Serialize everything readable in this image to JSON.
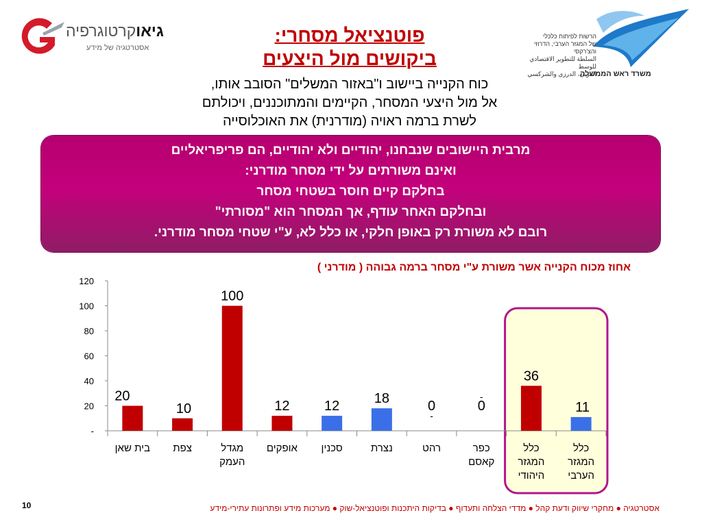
{
  "logo_left": {
    "brand_bold": "גיאו",
    "brand_rest": "קרטוגרפיה",
    "tagline": "אסטרטגיה של מידע"
  },
  "logo_right": {
    "lines": [
      "הרשות לפיתוח כלכלי",
      "של המגזר הערבי, הדרוזי והצ'רקסי",
      "السلطة للتطوير الاقتصادي للوسط",
      "العربي، الدرزي والشركسي"
    ],
    "office": "משרד ראש הממשלה"
  },
  "title_line1": "פוטנציאל מסחרי:",
  "title_line2": "ביקושים מול היצעים",
  "intro_lines": [
    "כוח הקנייה ביישוב ו\"באזור המשלים\" הסובב אותו,",
    "אל מול היצעי המסחר, הקיימים והמתוכננים, ויכולתם",
    "לשרת ברמה ראויה (מודרנית) את האוכלוסייה"
  ],
  "highlight_lines": [
    "מרבית היישובים שנבחנו, יהודיים ולא יהודיים,  הם פריפריאליים",
    "ואינם משורתים על ידי מסחר מודרני:",
    "בחלקם קיים חוסר בשטחי מסחר",
    "ובחלקם האחר עודף, אך המסחר הוא \"מסורתי\"",
    "רובם לא משורת רק באופן חלקי, או כלל לא, ע\"י שטחי מסחר מודרני."
  ],
  "chart_data": {
    "type": "bar",
    "title": "אחוז מכוח הקנייה אשר משורת ע\"י מסחר ברמה גבוהה ( מודרני )",
    "categories": [
      "בית שאן",
      "צפת",
      "מגדל העמק",
      "אופקים",
      "סכנין",
      "נצרת",
      "רהט",
      "כפר קאסם",
      "כלל המגזר היהודי",
      "כלל המגזר הערבי"
    ],
    "category_lines": [
      [
        "בית שאן"
      ],
      [
        "צפת"
      ],
      [
        "מגדל",
        "העמק"
      ],
      [
        "אופקים"
      ],
      [
        "סכנין"
      ],
      [
        "נצרת"
      ],
      [
        "רהט"
      ],
      [
        "כפר",
        "קאסם"
      ],
      [
        "כלל",
        "המגזר",
        "היהודי"
      ],
      [
        "כלל",
        "המגזר",
        "הערבי"
      ]
    ],
    "values": [
      20,
      10,
      100,
      12,
      12,
      18,
      0,
      0,
      36,
      11
    ],
    "value_labels": [
      "20",
      "10",
      "100",
      "12",
      "12",
      "18",
      "0",
      "0",
      "36",
      "11"
    ],
    "colors": [
      "#c00000",
      "#c00000",
      "#c00000",
      "#c00000",
      "#3b6fe8",
      "#3b6fe8",
      "#c00000",
      "#3b6fe8",
      "#c00000",
      "#3b6fe8"
    ],
    "ylim": [
      0,
      120
    ],
    "yticks": [
      0,
      20,
      40,
      60,
      80,
      100,
      120
    ],
    "ytick_labels": [
      "-",
      "20",
      "40",
      "60",
      "80",
      "100",
      "120"
    ],
    "dash_marks": [
      "-",
      "-"
    ],
    "highlight_group": "כלל המגזר",
    "highlight_color": "#b0168b",
    "highlight_fill": "#ffffdc"
  },
  "footer": "אסטרטגיה ● מחקרי שיווק ודעת קהל ● מדדי הצלחה ותעדוף ● בדיקות היתכנות ופוטנציאל-שוק ● מערכות מידע ופתרונות עתירי-מידע",
  "page_number": "10"
}
